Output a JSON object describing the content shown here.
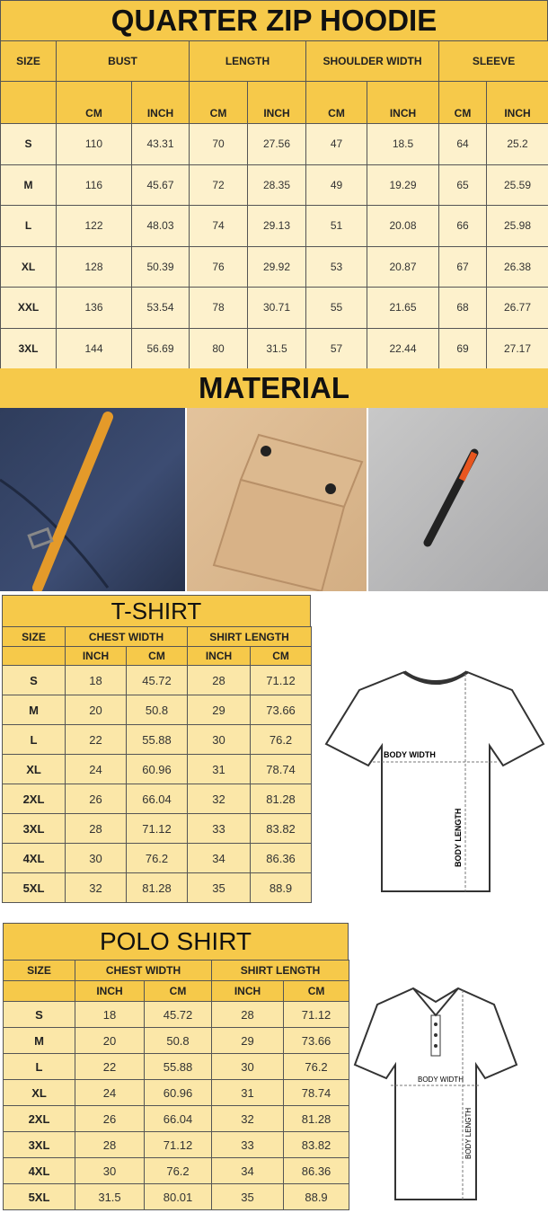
{
  "hoodie": {
    "title": "QUARTER ZIP HOODIE",
    "groups": [
      "SIZE",
      "BUST",
      "LENGTH",
      "SHOULDER WIDTH",
      "SLEEVE"
    ],
    "units": [
      "CM",
      "INCH",
      "CM",
      "INCH",
      "CM",
      "INCH",
      "CM",
      "INCH"
    ],
    "rows": [
      [
        "S",
        "110",
        "43.31",
        "70",
        "27.56",
        "47",
        "18.5",
        "64",
        "25.2"
      ],
      [
        "M",
        "116",
        "45.67",
        "72",
        "28.35",
        "49",
        "19.29",
        "65",
        "25.59"
      ],
      [
        "L",
        "122",
        "48.03",
        "74",
        "29.13",
        "51",
        "20.08",
        "66",
        "25.98"
      ],
      [
        "XL",
        "128",
        "50.39",
        "76",
        "29.92",
        "53",
        "20.87",
        "67",
        "26.38"
      ],
      [
        "XXL",
        "136",
        "53.54",
        "78",
        "30.71",
        "55",
        "21.65",
        "68",
        "26.77"
      ],
      [
        "3XL",
        "144",
        "56.69",
        "80",
        "31.5",
        "57",
        "22.44",
        "69",
        "27.17"
      ]
    ]
  },
  "material": {
    "title": "MATERIAL",
    "photos": [
      "navy-fleece-zipper-pull",
      "khaki-flap-pocket",
      "gray-sleeve-zip-pocket"
    ]
  },
  "tshirt": {
    "title": "T-SHIRT",
    "groups": [
      "SIZE",
      "CHEST WIDTH",
      "SHIRT LENGTH"
    ],
    "units": [
      "INCH",
      "CM",
      "INCH",
      "CM"
    ],
    "rows": [
      [
        "S",
        "18",
        "45.72",
        "28",
        "71.12"
      ],
      [
        "M",
        "20",
        "50.8",
        "29",
        "73.66"
      ],
      [
        "L",
        "22",
        "55.88",
        "30",
        "76.2"
      ],
      [
        "XL",
        "24",
        "60.96",
        "31",
        "78.74"
      ],
      [
        "2XL",
        "26",
        "66.04",
        "32",
        "81.28"
      ],
      [
        "3XL",
        "28",
        "71.12",
        "33",
        "83.82"
      ],
      [
        "4XL",
        "30",
        "76.2",
        "34",
        "86.36"
      ],
      [
        "5XL",
        "32",
        "81.28",
        "35",
        "88.9"
      ]
    ],
    "diagram": {
      "width_label": "BODY WIDTH",
      "length_label": "BODY LENGTH"
    }
  },
  "polo": {
    "title": "POLO SHIRT",
    "groups": [
      "SIZE",
      "CHEST WIDTH",
      "SHIRT LENGTH"
    ],
    "units": [
      "INCH",
      "CM",
      "INCH",
      "CM"
    ],
    "rows": [
      [
        "S",
        "18",
        "45.72",
        "28",
        "71.12"
      ],
      [
        "M",
        "20",
        "50.8",
        "29",
        "73.66"
      ],
      [
        "L",
        "22",
        "55.88",
        "30",
        "76.2"
      ],
      [
        "XL",
        "24",
        "60.96",
        "31",
        "78.74"
      ],
      [
        "2XL",
        "26",
        "66.04",
        "32",
        "81.28"
      ],
      [
        "3XL",
        "28",
        "71.12",
        "33",
        "83.82"
      ],
      [
        "4XL",
        "30",
        "76.2",
        "34",
        "86.36"
      ],
      [
        "5XL",
        "31.5",
        "80.01",
        "35",
        "88.9"
      ]
    ],
    "diagram": {
      "width_label": "BODY WIDTH",
      "length_label": "BODY LENGTH"
    }
  },
  "colors": {
    "header": "#f6c94a",
    "row": "#fdf1cc"
  }
}
